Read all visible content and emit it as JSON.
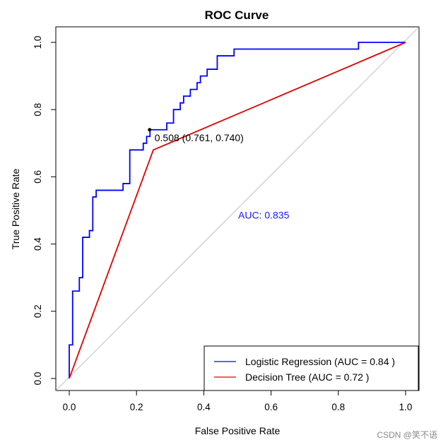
{
  "chart_data": {
    "type": "line",
    "title": "ROC Curve",
    "xlabel": "False Positive Rate",
    "ylabel": "True Positive Rate",
    "xlim": [
      0,
      1
    ],
    "ylim": [
      0,
      1
    ],
    "x_ticks": [
      "0.0",
      "0.2",
      "0.4",
      "0.6",
      "0.8",
      "1.0"
    ],
    "y_ticks": [
      "0.0",
      "0.2",
      "0.4",
      "0.6",
      "0.8",
      "1.0"
    ],
    "grid": false,
    "legend_position": "bottom-right",
    "series": [
      {
        "name": "Logistic Regression (AUC = 0.84 )",
        "color": "#0000ff",
        "x": [
          0,
          0,
          0.01,
          0.01,
          0.03,
          0.03,
          0.04,
          0.04,
          0.06,
          0.06,
          0.07,
          0.07,
          0.08,
          0.08,
          0.09,
          0.09,
          0.16,
          0.16,
          0.18,
          0.18,
          0.22,
          0.22,
          0.23,
          0.23,
          0.24,
          0.24,
          0.29,
          0.29,
          0.31,
          0.31,
          0.33,
          0.33,
          0.34,
          0.34,
          0.36,
          0.36,
          0.38,
          0.38,
          0.39,
          0.39,
          0.41,
          0.41,
          0.42,
          0.42,
          0.44,
          0.44,
          0.49,
          0.49,
          0.51,
          0.51,
          0.86,
          0.86,
          1.0
        ],
        "y": [
          0,
          0.1,
          0.1,
          0.26,
          0.26,
          0.3,
          0.3,
          0.42,
          0.42,
          0.44,
          0.44,
          0.54,
          0.54,
          0.56,
          0.56,
          0.56,
          0.56,
          0.58,
          0.58,
          0.68,
          0.68,
          0.7,
          0.7,
          0.72,
          0.72,
          0.74,
          0.74,
          0.76,
          0.76,
          0.8,
          0.8,
          0.82,
          0.82,
          0.84,
          0.84,
          0.86,
          0.86,
          0.88,
          0.88,
          0.9,
          0.9,
          0.92,
          0.92,
          0.92,
          0.92,
          0.96,
          0.96,
          0.98,
          0.98,
          0.98,
          0.98,
          1.0,
          1.0
        ]
      },
      {
        "name": "Decision Tree (AUC = 0.72 )",
        "color": "#e00000",
        "x": [
          0,
          0.25,
          1.0
        ],
        "y": [
          0,
          0.68,
          1.0
        ]
      }
    ],
    "reference_line": {
      "x": [
        0,
        1
      ],
      "y": [
        0,
        1
      ],
      "color": "#b0b0b0"
    },
    "threshold_point": {
      "x": 0.239,
      "y": 0.74,
      "label": "0.508 (0.761, 0.740)"
    },
    "annotations": [
      {
        "text": "AUC: 0.835",
        "x": 0.5,
        "y": 0.48,
        "color": "#1a1aff"
      }
    ]
  },
  "watermark": "CSDN @笑不语"
}
